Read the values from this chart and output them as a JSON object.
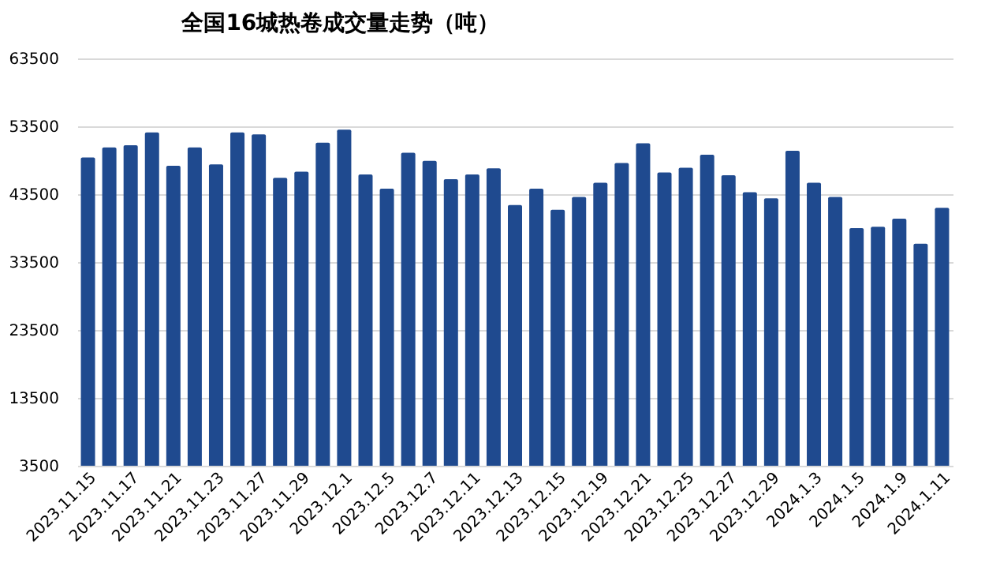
{
  "chart_data": {
    "type": "bar",
    "title": "全国16城热卷成交量走势（吨）",
    "categories": [
      "2023.11.15",
      null,
      "2023.11.17",
      null,
      "2023.11.21",
      null,
      "2023.11.23",
      null,
      "2023.11.27",
      null,
      "2023.11.29",
      null,
      "2023.12.1",
      null,
      "2023.12.5",
      null,
      "2023.12.7",
      null,
      "2023.12.11",
      null,
      "2023.12.13",
      null,
      "2023.12.15",
      null,
      "2023.12.19",
      null,
      "2023.12.21",
      null,
      "2023.12.25",
      null,
      "2023.12.27",
      null,
      "2023.12.29",
      null,
      "2024.1.3",
      null,
      "2024.1.5",
      null,
      "2024.1.9",
      null,
      "2024.1.11"
    ],
    "values": [
      48900,
      50400,
      50700,
      52600,
      47700,
      50400,
      47900,
      52600,
      52300,
      45900,
      46800,
      51100,
      53000,
      46400,
      44300,
      49600,
      48400,
      45700,
      46400,
      47300,
      41900,
      44300,
      41200,
      43100,
      45200,
      48100,
      51000,
      46700,
      47400,
      49300,
      46300,
      43800,
      42900,
      49900,
      45200,
      43100,
      38500,
      38700,
      39900,
      36200,
      41500
    ],
    "color": "#1f4a8f",
    "ylim": [
      3500,
      63500
    ],
    "yticks": [
      3500,
      13500,
      23500,
      33500,
      43500,
      53500,
      63500
    ],
    "grid": "y"
  }
}
